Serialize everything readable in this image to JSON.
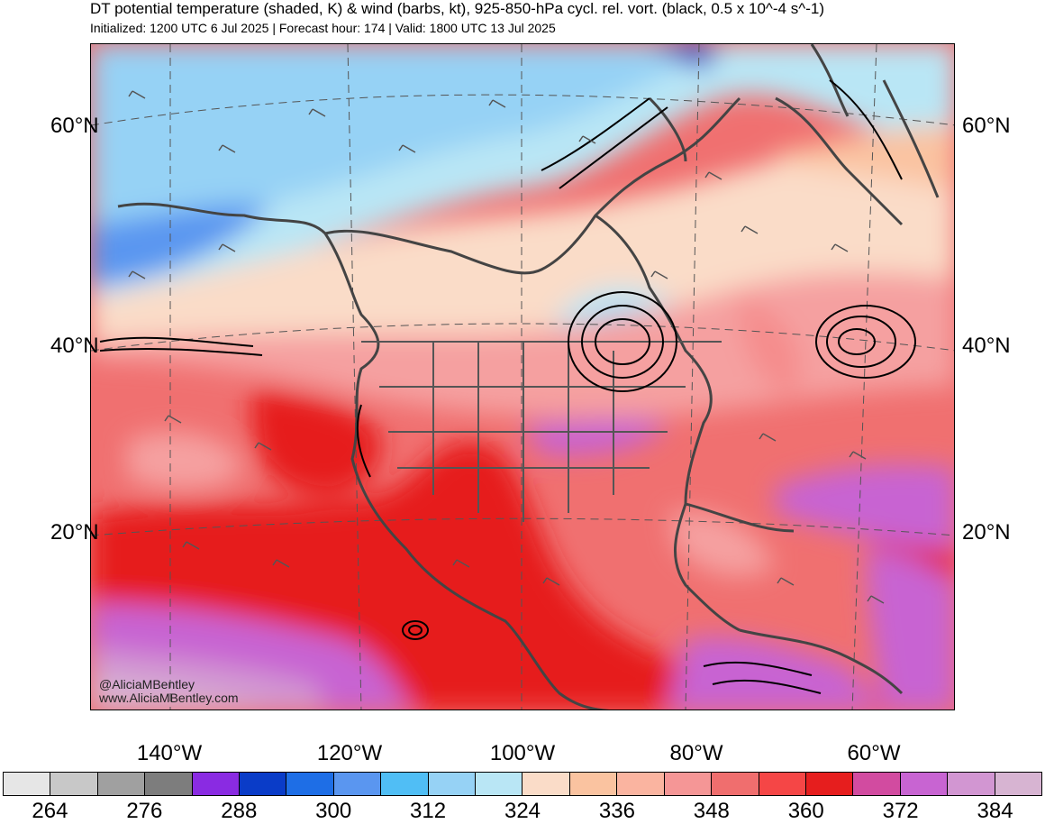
{
  "header": {
    "title": "DT potential temperature (shaded, K) & wind (barbs, kt), 925-850-hPa cycl. rel. vort. (black, 0.5 x 10^-4 s^-1)",
    "subtitle": "Initialized: 1200 UTC 6 Jul 2025 | Forecast hour: 174 | Valid: 1800 UTC 13 Jul 2025"
  },
  "credit": {
    "handle": "@AliciaMBentley",
    "site": "www.AliciaMBentley.com"
  },
  "map": {
    "lat_labels": [
      "60°N",
      "40°N",
      "20°N"
    ],
    "lon_labels": [
      "140°W",
      "120°W",
      "100°W",
      "80°W",
      "60°W"
    ]
  },
  "colorbar": {
    "colors": [
      "#e6e6e6",
      "#c8c8c8",
      "#a0a0a0",
      "#7d7d7d",
      "#8a2be2",
      "#0a3cc8",
      "#1e6ee6",
      "#5a96f0",
      "#50bef5",
      "#96d2f5",
      "#b9e6f5",
      "#fadcc8",
      "#fac3a0",
      "#fab4a0",
      "#f59696",
      "#f06e6e",
      "#f54646",
      "#e61e1e",
      "#d24ba0",
      "#c864d2",
      "#d296d2",
      "#d7b4d2"
    ],
    "labels": [
      "264",
      "276",
      "288",
      "300",
      "312",
      "324",
      "336",
      "348",
      "360",
      "372",
      "384"
    ]
  }
}
